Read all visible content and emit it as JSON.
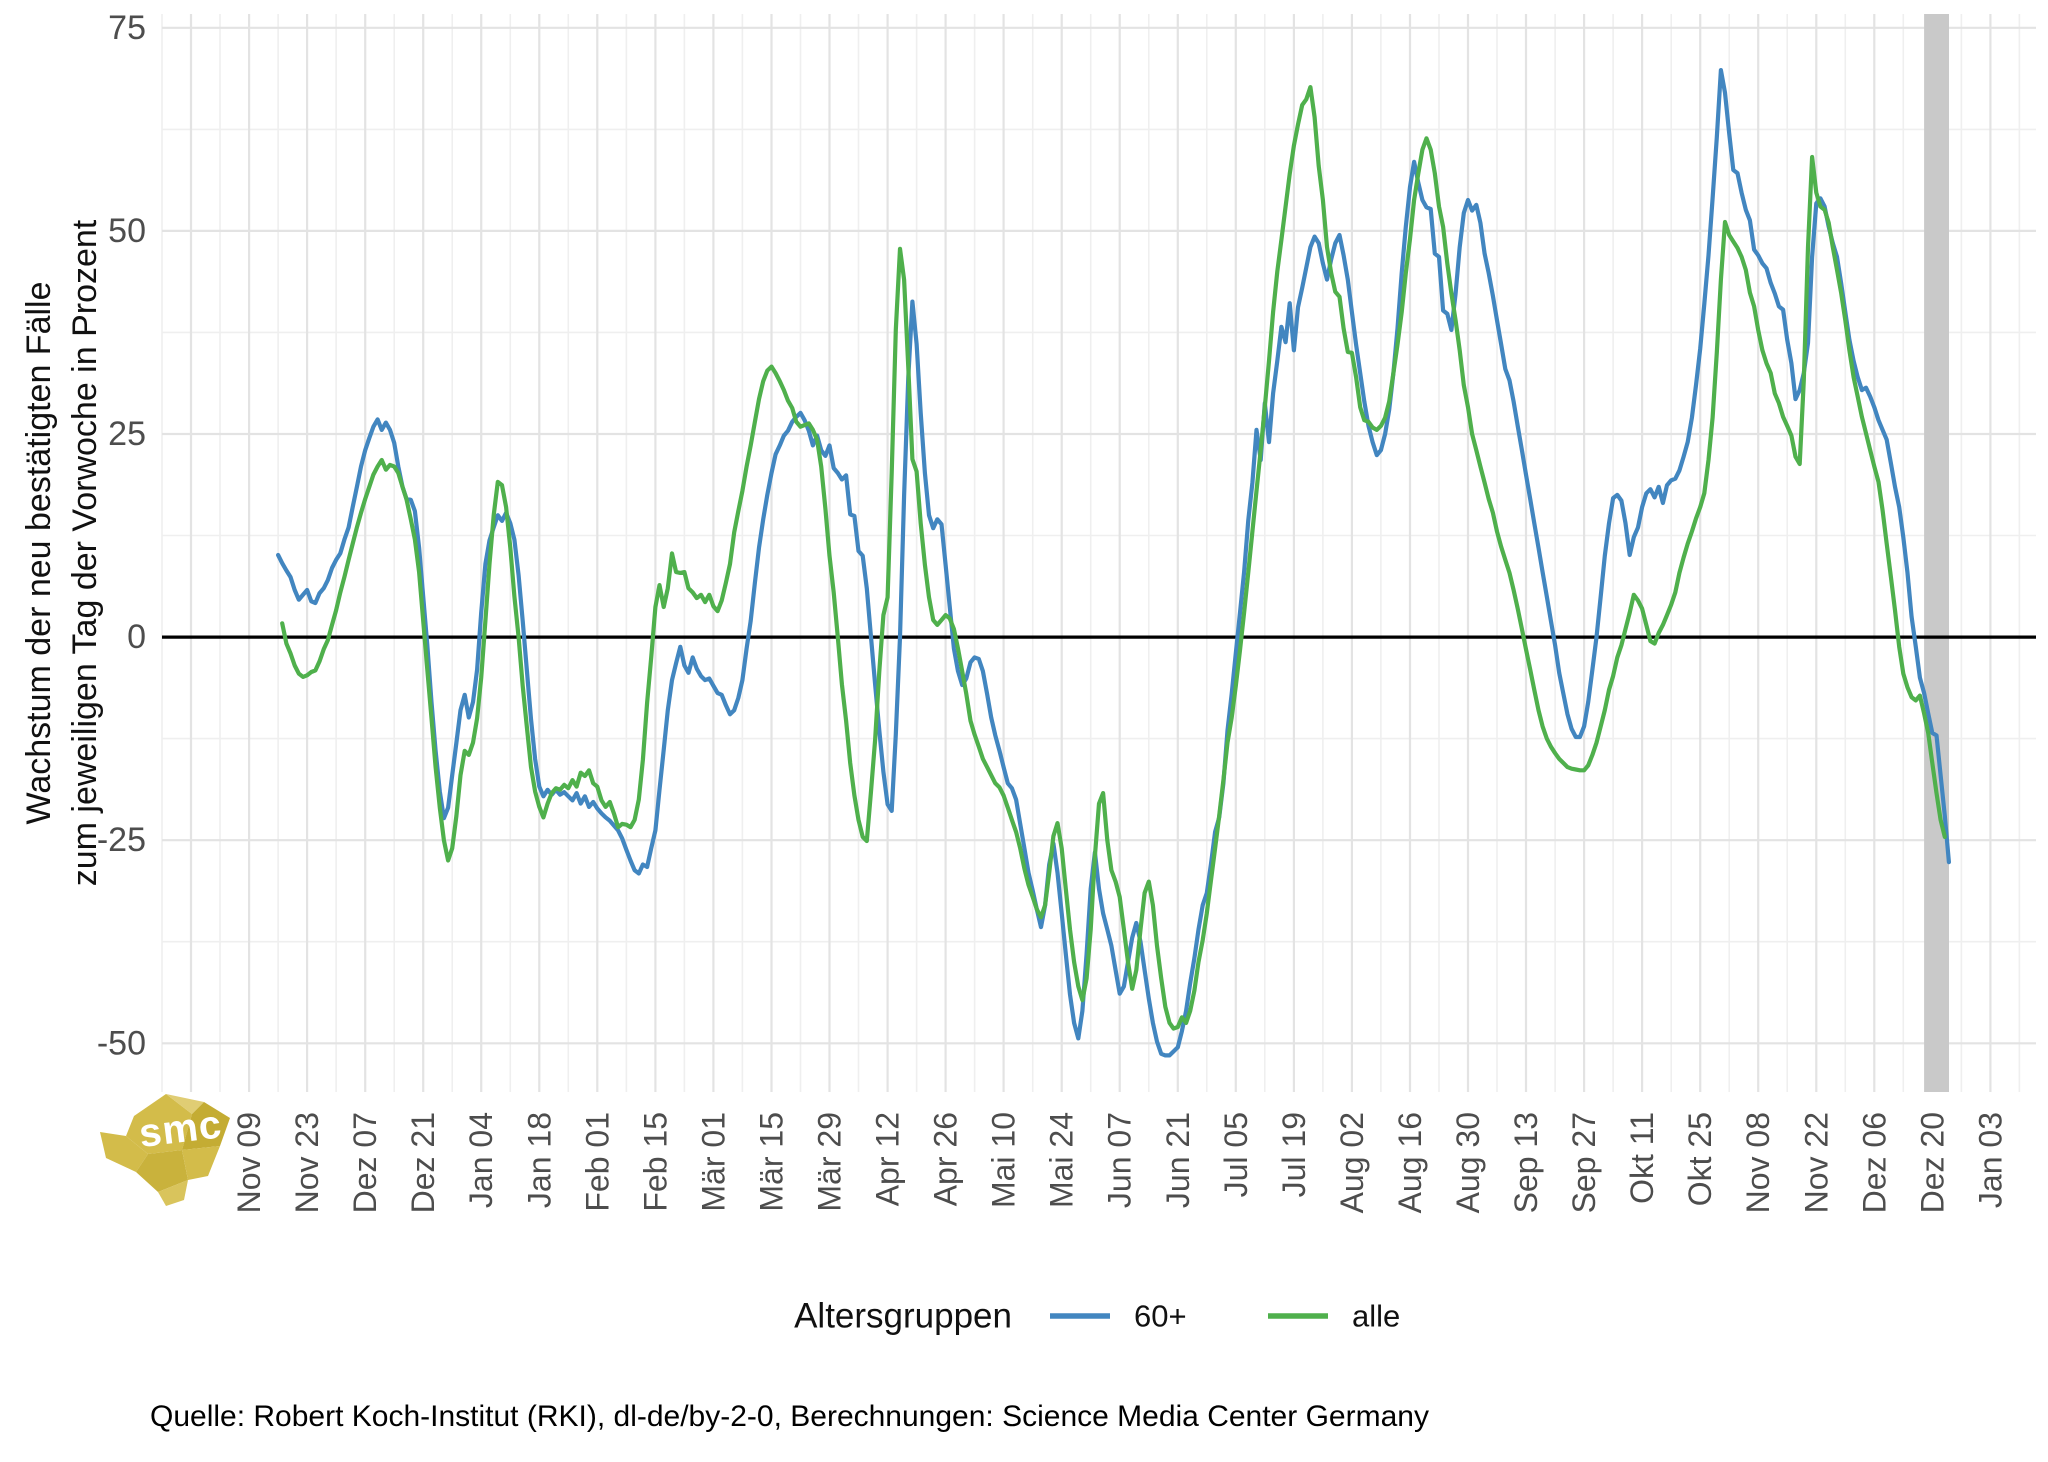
{
  "caption": "Quelle: Robert Koch-Institut (RKI), dl-de/by-2-0, Berechnungen: Science Media Center Germany",
  "logo": {
    "text": "smc",
    "color_main": "#d3bc4a",
    "color_dark": "#c4ac33",
    "color_light": "#e0cd74"
  },
  "legend": {
    "title": "Altersgruppen",
    "items": [
      {
        "label": "60+",
        "color": "#4286c0"
      },
      {
        "label": "alle",
        "color": "#4fb04c"
      }
    ]
  },
  "chart_data": {
    "type": "line",
    "ylabel_line1": "Wachstum der neu bestätigten Fälle",
    "ylabel_line2": "zum jeweiligen Tag der Vorwoche in Prozent",
    "ylim": [
      -56,
      76.7
    ],
    "x_domain": [
      "2020-10-19",
      "2022-01-14"
    ],
    "grid": "on",
    "legend_position": "bottom",
    "zero_line_color": "#000000",
    "grid_major_color": "#e3e3e3",
    "grid_minor_color": "#efefef",
    "axis_text_color": "#4d4d4d",
    "shaded_region": {
      "from": "2021-12-18",
      "to": "2021-12-24",
      "color": "#c9c9c9"
    },
    "y_ticks": [
      {
        "label": "75",
        "value": 75
      },
      {
        "label": "50",
        "value": 50
      },
      {
        "label": "25",
        "value": 25
      },
      {
        "label": "0",
        "value": 0
      },
      {
        "label": "-25",
        "value": -25
      },
      {
        "label": "-50",
        "value": -50
      }
    ],
    "y_minor": [
      62.5,
      37.5,
      12.5,
      -12.5,
      -37.5
    ],
    "x_ticks": [
      {
        "label": "Nov 09",
        "date": "2020-11-09"
      },
      {
        "label": "Nov 23",
        "date": "2020-11-23"
      },
      {
        "label": "Dez 07",
        "date": "2020-12-07"
      },
      {
        "label": "Dez 21",
        "date": "2020-12-21"
      },
      {
        "label": "Jan 04",
        "date": "2021-01-04"
      },
      {
        "label": "Jan 18",
        "date": "2021-01-18"
      },
      {
        "label": "Feb 01",
        "date": "2021-02-01"
      },
      {
        "label": "Feb 15",
        "date": "2021-02-15"
      },
      {
        "label": "Mär 01",
        "date": "2021-03-01"
      },
      {
        "label": "Mär 15",
        "date": "2021-03-15"
      },
      {
        "label": "Mär 29",
        "date": "2021-03-29"
      },
      {
        "label": "Apr 12",
        "date": "2021-04-12"
      },
      {
        "label": "Apr 26",
        "date": "2021-04-26"
      },
      {
        "label": "Mai 10",
        "date": "2021-05-10"
      },
      {
        "label": "Mai 24",
        "date": "2021-05-24"
      },
      {
        "label": "Jun 07",
        "date": "2021-06-07"
      },
      {
        "label": "Jun 21",
        "date": "2021-06-21"
      },
      {
        "label": "Jul 05",
        "date": "2021-07-05"
      },
      {
        "label": "Jul 19",
        "date": "2021-07-19"
      },
      {
        "label": "Aug 02",
        "date": "2021-08-02"
      },
      {
        "label": "Aug 16",
        "date": "2021-08-16"
      },
      {
        "label": "Aug 30",
        "date": "2021-08-30"
      },
      {
        "label": "Sep 13",
        "date": "2021-09-13"
      },
      {
        "label": "Sep 27",
        "date": "2021-09-27"
      },
      {
        "label": "Okt 11",
        "date": "2021-10-11"
      },
      {
        "label": "Okt 25",
        "date": "2021-10-25"
      },
      {
        "label": "Nov 08",
        "date": "2021-11-08"
      },
      {
        "label": "Nov 22",
        "date": "2021-11-22"
      },
      {
        "label": "Dez 06",
        "date": "2021-12-06"
      },
      {
        "label": "Dez 20",
        "date": "2021-12-20"
      },
      {
        "label": "Jan 03",
        "date": "2022-01-03"
      }
    ],
    "series": [
      {
        "name": "60+",
        "color": "#4286c0",
        "start_date": "2020-11-16",
        "values": [
          10.1,
          9.1,
          8.2,
          7.4,
          5.8,
          4.6,
          5.2,
          5.8,
          4.4,
          4.2,
          5.4,
          6,
          7,
          8.5,
          9.5,
          10.3,
          12,
          13.5,
          16,
          18.5,
          21,
          23,
          24.5,
          25.9,
          26.8,
          25.5,
          26.4,
          25.5,
          23.9,
          21,
          18.5,
          17,
          16.9,
          15.5,
          11,
          5,
          -1,
          -8,
          -14,
          -19,
          -22.3,
          -21,
          -17,
          -13,
          -9,
          -7.1,
          -9.9,
          -8,
          -4,
          3,
          9,
          11.9,
          13.5,
          15,
          14.3,
          15.3,
          14,
          12,
          7.6,
          2,
          -4,
          -10.1,
          -15,
          -18.4,
          -19.6,
          -18.8,
          -19.4,
          -18.8,
          -19.4,
          -19.1,
          -19.6,
          -20.1,
          -19.2,
          -20.5,
          -19.6,
          -20.9,
          -20.3,
          -21.1,
          -21.7,
          -22.2,
          -22.6,
          -23.2,
          -23.8,
          -24.8,
          -26.2,
          -27.5,
          -28.7,
          -29.1,
          -28,
          -28.3,
          -26,
          -23.8,
          -18.8,
          -13.9,
          -9,
          -5.3,
          -3.2,
          -1.2,
          -3.5,
          -4.4,
          -2.5,
          -3.9,
          -4.8,
          -5.3,
          -5.1,
          -6,
          -6.9,
          -7.1,
          -8.4,
          -9.5,
          -9,
          -7.5,
          -5.3,
          -1.4,
          2,
          6.7,
          11,
          14.5,
          17.5,
          20.2,
          22.5,
          23.6,
          24.8,
          25.4,
          26.5,
          27.1,
          27.6,
          26.7,
          25.4,
          23.6,
          24.8,
          23,
          22.3,
          23.6,
          20.8,
          20.2,
          19.4,
          19.9,
          15.1,
          14.9,
          10.6,
          10,
          6,
          0,
          -5.8,
          -11.5,
          -16.6,
          -20.6,
          -21.4,
          -12,
          0,
          17.4,
          32,
          41.3,
          36.1,
          27.6,
          20.2,
          15,
          13.4,
          14.5,
          13.9,
          8.9,
          3.8,
          -1.4,
          -4.2,
          -5.9,
          -5.1,
          -3.1,
          -2.5,
          -2.7,
          -4.2,
          -7,
          -9.9,
          -12.1,
          -14,
          -16,
          -18,
          -18.6,
          -20,
          -23,
          -26,
          -29,
          -31.2,
          -33.5,
          -35.7,
          -33,
          -28,
          -25.4,
          -29,
          -34,
          -39,
          -44,
          -47.5,
          -49.4,
          -46,
          -39,
          -31,
          -26.5,
          -31,
          -34,
          -36,
          -38,
          -41,
          -43.9,
          -43,
          -40,
          -37,
          -35.2,
          -37.5,
          -41,
          -44.5,
          -47.5,
          -49.8,
          -51.3,
          -51.5,
          -51.5,
          -51,
          -50.5,
          -48.5,
          -46,
          -42.6,
          -39.5,
          -36,
          -33,
          -31.5,
          -28,
          -24,
          -22.2,
          -18,
          -11.5,
          -7,
          -2,
          3,
          8,
          14.4,
          19,
          25.5,
          21.8,
          28.8,
          24,
          30,
          34,
          38.2,
          36.3,
          41.1,
          35.3,
          40.6,
          43,
          45.5,
          48,
          49.3,
          48.5,
          46,
          44,
          46.5,
          48.5,
          49.5,
          47,
          44,
          40,
          36,
          32.5,
          29,
          26,
          24,
          22.4,
          23,
          25,
          28,
          32.5,
          38,
          44.8,
          50.5,
          55.4,
          58.5,
          56,
          53.8,
          52.9,
          52.7,
          47.2,
          46.8,
          40.2,
          39.8,
          37.8,
          42.3,
          48,
          52.2,
          53.8,
          52.5,
          53.2,
          51,
          47.2,
          44.8,
          42,
          39,
          36,
          33,
          31.6,
          29,
          26,
          23,
          20,
          17,
          14,
          11,
          8,
          5,
          2,
          -1,
          -4.4,
          -7,
          -9.5,
          -11.3,
          -12.3,
          -12.3,
          -11,
          -8,
          -4,
          0,
          5,
          10,
          14,
          17.1,
          17.5,
          16.8,
          14,
          10.1,
          12.3,
          13.5,
          16,
          17.7,
          18.2,
          17.2,
          18.5,
          16.5,
          18.7,
          19.3,
          19.5,
          20.5,
          22.2,
          24,
          27,
          31,
          35.5,
          41,
          47,
          54,
          61.5,
          69.8,
          67,
          62,
          57.5,
          57.1,
          54.7,
          52.6,
          51.3,
          47.7,
          47,
          46,
          45.4,
          43.6,
          42.3,
          40.7,
          40.3,
          36.6,
          33.7,
          29.3,
          30.4,
          32.5,
          36.2,
          46.8,
          53.4,
          54,
          53,
          50.5,
          48.5,
          46.8,
          43.6,
          40,
          36.6,
          34,
          32,
          30.4,
          30.7,
          29.6,
          28.3,
          26.7,
          25.5,
          24.3,
          21.4,
          18.5,
          16,
          12.3,
          7.9,
          2.5,
          -1.2,
          -5,
          -6.9,
          -9.4,
          -11.8,
          -12.1,
          -17,
          -22,
          -27.7
        ]
      },
      {
        "name": "alle",
        "color": "#4fb04c",
        "start_date": "2020-11-17",
        "values": [
          1.7,
          -0.8,
          -2,
          -3.5,
          -4.5,
          -4.9,
          -4.7,
          -4.3,
          -4.1,
          -3,
          -1.5,
          -0.4,
          1.5,
          3.3,
          5.5,
          7.4,
          9.5,
          11.5,
          13.5,
          15.3,
          17,
          18.5,
          20,
          21,
          21.8,
          20.6,
          21.2,
          21,
          20.2,
          18.5,
          16.9,
          14.5,
          12,
          8,
          2,
          -4,
          -10,
          -16,
          -21,
          -25,
          -27.5,
          -26,
          -22,
          -17,
          -14,
          -14.5,
          -13,
          -10,
          -5,
          2,
          9,
          15,
          19.1,
          18.7,
          16,
          11,
          5,
          0,
          -6,
          -11,
          -16,
          -19,
          -20.9,
          -22.2,
          -20.5,
          -19.2,
          -18.6,
          -18.8,
          -18.2,
          -18.6,
          -17.6,
          -18.4,
          -16.7,
          -17.1,
          -16.4,
          -18,
          -18.4,
          -20.1,
          -20.9,
          -20.3,
          -21.7,
          -23.4,
          -23,
          -23.1,
          -23.4,
          -22.5,
          -20,
          -15.1,
          -8.1,
          -2.5,
          3.7,
          6.4,
          3.7,
          6,
          10.3,
          8,
          7.9,
          8,
          6,
          5.5,
          4.8,
          5.2,
          4.3,
          5.2,
          3.8,
          3.2,
          4.5,
          6.7,
          9,
          12.9,
          15.5,
          18,
          21,
          23.6,
          26.5,
          29.3,
          31.5,
          32.8,
          33.3,
          32.5,
          31.5,
          30.4,
          29.1,
          28.2,
          26.5,
          25.9,
          26.1,
          26.3,
          25.5,
          24.3,
          21,
          15.8,
          10,
          5.5,
          0,
          -5.8,
          -10.3,
          -15.5,
          -19.5,
          -22.5,
          -24.6,
          -25.1,
          -19,
          -12.7,
          -4.2,
          2.7,
          4.9,
          20.2,
          37.8,
          47.8,
          44,
          33.2,
          21.9,
          20.4,
          14,
          8.9,
          4.9,
          2.1,
          1.5,
          2.1,
          2.7,
          2.3,
          1,
          -1.4,
          -4.2,
          -7,
          -10.3,
          -12,
          -13.5,
          -15,
          -16,
          -17,
          -18,
          -18.5,
          -19.5,
          -21,
          -22.5,
          -24,
          -26,
          -28.5,
          -30.5,
          -32,
          -33.5,
          -34.5,
          -33,
          -29,
          -24.5,
          -22.9,
          -26,
          -31,
          -36,
          -40,
          -43,
          -44.7,
          -42,
          -36,
          -27,
          -20.5,
          -19.2,
          -25,
          -28.7,
          -30.1,
          -32,
          -36,
          -40,
          -43.3,
          -41,
          -36,
          -31.5,
          -30.1,
          -33,
          -38,
          -42,
          -45.5,
          -47.5,
          -48.2,
          -48,
          -46.8,
          -47.5,
          -46,
          -43.5,
          -40,
          -37.3,
          -34,
          -30,
          -26,
          -22,
          -17.6,
          -13,
          -9.9,
          -6,
          -1.6,
          3,
          8,
          13,
          18,
          23,
          28.3,
          34,
          40,
          45,
          48.9,
          53,
          57,
          60.5,
          63.1,
          65.5,
          66.2,
          67.7,
          64,
          58,
          53.8,
          48,
          44.8,
          42.5,
          41.9,
          38,
          35.1,
          35,
          32,
          28.3,
          26.7,
          26.5,
          25.8,
          25.5,
          26,
          27,
          29,
          32.5,
          36,
          40,
          44.8,
          49,
          53.8,
          57,
          60,
          61.4,
          60,
          57.1,
          53,
          50.5,
          46,
          42.3,
          39,
          35.3,
          31,
          28.3,
          25,
          23,
          21,
          19,
          17,
          15.3,
          13,
          11.1,
          9.5,
          7.9,
          5.8,
          3.5,
          1,
          -1.5,
          -4,
          -6.5,
          -9,
          -11,
          -12.5,
          -13.5,
          -14.3,
          -15,
          -15.5,
          -16,
          -16.2,
          -16.3,
          -16.4,
          -16.4,
          -15.8,
          -14.5,
          -13,
          -11,
          -9,
          -6.5,
          -4.8,
          -2.5,
          -1,
          1,
          3,
          5.2,
          4.5,
          3.5,
          1.5,
          -0.5,
          -0.8,
          0.5,
          1.5,
          2.7,
          4,
          5.5,
          7.9,
          9.8,
          11.5,
          13,
          14.6,
          16,
          17.7,
          21.8,
          27,
          35,
          44,
          51.1,
          49.5,
          48.7,
          47.9,
          46.8,
          45.2,
          42.4,
          40.7,
          37.8,
          35.3,
          33.7,
          32.5,
          30,
          28.8,
          27.1,
          26,
          24.8,
          22.2,
          21.3,
          31.6,
          48,
          59.1,
          54.7,
          53,
          52.6,
          51,
          48,
          45.2,
          42.4,
          39,
          35.3,
          32,
          29.6,
          27.1,
          25.1,
          23,
          21,
          19.1,
          15.6,
          11.5,
          7.4,
          3.3,
          -1.2,
          -4.5,
          -6.2,
          -7.4,
          -7.8,
          -7.2,
          -9.4,
          -11.8,
          -15.5,
          -19.2,
          -22.5,
          -24.6
        ]
      }
    ]
  }
}
